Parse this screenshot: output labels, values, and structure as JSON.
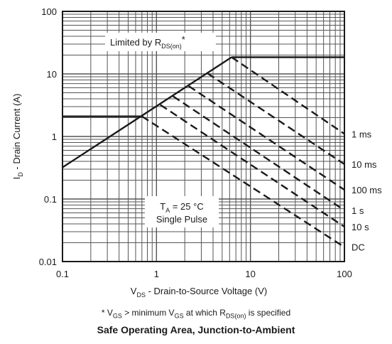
{
  "chart_data": {
    "type": "line",
    "title": "",
    "xlabel": "V_DS - Drain-to-Source Voltage (V)",
    "ylabel": "I_D - Drain Current (A)",
    "xscale": "log",
    "yscale": "log",
    "xlim": [
      0.1,
      100
    ],
    "ylim": [
      0.01,
      100
    ],
    "grid": true,
    "xticks": [
      "0.1",
      "1",
      "10",
      "100"
    ],
    "yticks": [
      "0.01",
      "0.1",
      "1",
      "10",
      "100"
    ],
    "boundary_lines": [
      {
        "name": "R_DS(on) limit",
        "points": [
          [
            0.1,
            0.32
          ],
          [
            6.3,
            18.5
          ]
        ]
      },
      {
        "name": "I_D max",
        "points": [
          [
            6.3,
            18.5
          ],
          [
            100,
            18.5
          ]
        ]
      },
      {
        "name": "I_D continuous",
        "points": [
          [
            0.1,
            2.1
          ],
          [
            0.7,
            2.1
          ]
        ]
      }
    ],
    "series": [
      {
        "name": "1 ms",
        "points": [
          [
            6.3,
            18.5
          ],
          [
            100,
            1.1
          ]
        ]
      },
      {
        "name": "10 ms",
        "points": [
          [
            3.5,
            10.2
          ],
          [
            100,
            0.36
          ]
        ]
      },
      {
        "name": "100 ms",
        "points": [
          [
            2.2,
            6.4
          ],
          [
            100,
            0.14
          ]
        ]
      },
      {
        "name": "1 s",
        "points": [
          [
            1.5,
            4.4
          ],
          [
            100,
            0.066
          ]
        ]
      },
      {
        "name": "10 s",
        "points": [
          [
            1.1,
            3.2
          ],
          [
            100,
            0.036
          ]
        ]
      },
      {
        "name": "DC",
        "points": [
          [
            0.7,
            2.1
          ],
          [
            100,
            0.017
          ]
        ]
      }
    ],
    "annotations": {
      "rds_label": "Limited by R",
      "rds_sub": "DS(on)",
      "rds_star": "*",
      "ta_main": "T",
      "ta_sub": "A",
      "ta_rest": " = 25 °C",
      "pulse": "Single Pulse"
    }
  },
  "footnote": {
    "star": "*",
    "v1": "V",
    "v1_sub": "GS",
    "mid": " > minimum V",
    "v2_sub": "GS",
    "mid2": " at which R",
    "r_sub": "DS(on)",
    "end": " is specified"
  },
  "caption": "Safe Operating Area, Junction-to-Ambient",
  "colors": {
    "line": "#1a1a1a",
    "grid": "#555555"
  }
}
